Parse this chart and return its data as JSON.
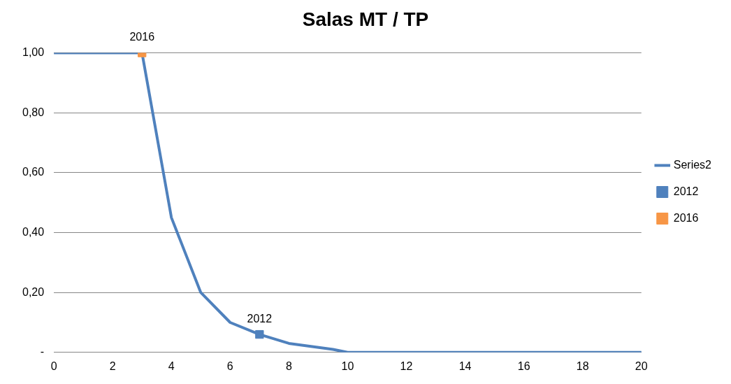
{
  "chart_data": {
    "type": "line",
    "title": "Salas MT / TP",
    "series": [
      {
        "name": "Series2",
        "color": "#4f81bd",
        "x": [
          0,
          3,
          4,
          5,
          6,
          7,
          8,
          9.5,
          10,
          20
        ],
        "values": [
          1,
          1,
          0.45,
          0.2,
          0.1,
          0.06,
          0.03,
          0.01,
          0,
          0
        ],
        "marker": "none"
      },
      {
        "name": "2012",
        "color": "#4f81bd",
        "x": [
          7
        ],
        "values": [
          0.06
        ],
        "marker": "square"
      },
      {
        "name": "2016",
        "color": "#f79646",
        "x": [
          3
        ],
        "values": [
          1
        ],
        "marker": "square"
      }
    ],
    "annotations": [
      {
        "text": "2016",
        "x": 3,
        "y": 1
      },
      {
        "text": "2012",
        "x": 7,
        "y": 0.06
      }
    ],
    "xlim": [
      0,
      20
    ],
    "xticks": [
      0,
      2,
      4,
      6,
      8,
      10,
      12,
      14,
      16,
      18,
      20
    ],
    "ylim": [
      0,
      1
    ],
    "yticks": [
      {
        "value": 0,
        "label": "-"
      },
      {
        "value": 0.2,
        "label": "0,20"
      },
      {
        "value": 0.4,
        "label": "0,40"
      },
      {
        "value": 0.6,
        "label": "0,60"
      },
      {
        "value": 0.8,
        "label": "0,80"
      },
      {
        "value": 1,
        "label": "1,00"
      }
    ],
    "grid": "y",
    "legend": "right"
  }
}
